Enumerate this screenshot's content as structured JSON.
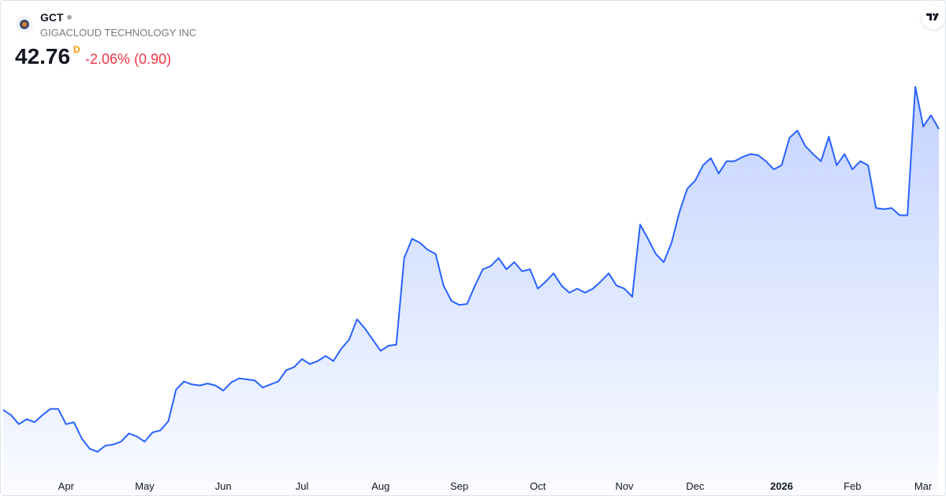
{
  "chart_data": {
    "type": "area",
    "symbol": "GCT",
    "title": "GIGACLOUD TECHNOLOGY INC",
    "last_price": 42.76,
    "interval": "D",
    "change_percent": "-2.06%",
    "change": "(0.90)",
    "color": "#2962ff",
    "ylim": [
      9,
      48
    ],
    "categories": [
      null,
      null,
      null,
      null,
      null,
      null,
      null,
      null,
      "Apr",
      null,
      null,
      null,
      null,
      null,
      null,
      null,
      null,
      null,
      "May",
      null,
      null,
      null,
      null,
      null,
      null,
      null,
      null,
      null,
      "Jun",
      null,
      null,
      null,
      null,
      null,
      null,
      null,
      null,
      null,
      "Jul",
      null,
      null,
      null,
      null,
      null,
      null,
      null,
      null,
      null,
      "Aug",
      null,
      null,
      null,
      null,
      null,
      null,
      null,
      null,
      null,
      "Sep",
      null,
      null,
      null,
      null,
      null,
      null,
      null,
      null,
      null,
      "Oct",
      null,
      null,
      null,
      null,
      null,
      null,
      null,
      null,
      null,
      null,
      "Nov",
      null,
      null,
      null,
      null,
      null,
      null,
      null,
      null,
      "Dec",
      null,
      null,
      null,
      null,
      null,
      null,
      null,
      null,
      null,
      null,
      "2026",
      null,
      null,
      null,
      null,
      null,
      null,
      null,
      null,
      "Feb",
      null,
      null,
      null,
      null,
      null,
      null,
      null,
      null,
      "Mar",
      null,
      null
    ],
    "values": [
      15.2,
      14.7,
      13.8,
      14.3,
      14.0,
      14.7,
      15.3,
      15.3,
      13.8,
      14.0,
      12.4,
      11.4,
      11.1,
      11.7,
      11.8,
      12.1,
      12.9,
      12.6,
      12.1,
      13.0,
      13.2,
      14.1,
      17.2,
      18.0,
      17.7,
      17.6,
      17.8,
      17.6,
      17.1,
      17.9,
      18.3,
      18.2,
      18.1,
      17.4,
      17.7,
      18.0,
      19.1,
      19.4,
      20.2,
      19.7,
      20.0,
      20.5,
      20.0,
      21.2,
      22.1,
      24.1,
      23.2,
      22.1,
      21.0,
      21.5,
      21.6,
      30.1,
      32.0,
      31.6,
      30.9,
      30.5,
      27.4,
      25.9,
      25.5,
      25.6,
      27.4,
      29.0,
      29.3,
      30.1,
      29.0,
      29.7,
      28.8,
      29.0,
      27.1,
      27.8,
      28.6,
      27.4,
      26.7,
      27.1,
      26.7,
      27.1,
      27.8,
      28.6,
      27.4,
      27.1,
      26.3,
      33.4,
      32.0,
      30.5,
      29.7,
      31.6,
      34.6,
      36.9,
      37.7,
      39.2,
      39.9,
      38.4,
      39.6,
      39.6,
      40.0,
      40.3,
      40.2,
      39.6,
      38.8,
      39.2,
      41.9,
      42.6,
      41.1,
      40.3,
      39.6,
      42.0,
      39.2,
      40.3,
      38.8,
      39.6,
      39.2,
      35.0,
      34.9,
      35.0,
      34.3,
      34.3,
      46.9,
      43.0,
      44.1,
      42.76
    ]
  }
}
